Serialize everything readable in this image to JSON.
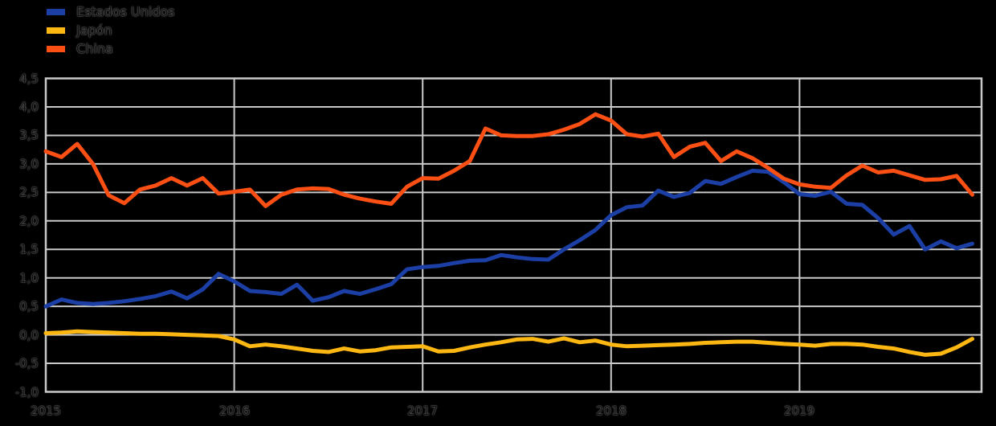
{
  "legend": {
    "items": [
      {
        "label": "Estados Unidos",
        "color": "#1b3fa5"
      },
      {
        "label": "Japón",
        "color": "#fdb712"
      },
      {
        "label": "China",
        "color": "#fb4f14"
      }
    ]
  },
  "axes": {
    "y_tick_labels": [
      "4,5",
      "4,0",
      "3,5",
      "3,0",
      "2,5",
      "2,0",
      "1,5",
      "1,0",
      "0,5",
      "0,0",
      "-0,5",
      "-1,0"
    ],
    "x_tick_labels": [
      "2015",
      "2016",
      "2017",
      "2018",
      "2019"
    ]
  },
  "chart_data": {
    "type": "line",
    "title": "",
    "xlabel": "",
    "ylabel": "",
    "grid": true,
    "legend_position": "top-left",
    "background_color": "#000000",
    "gridline_color": "#c9c9c9",
    "ylim": [
      -1.0,
      4.5
    ],
    "y_ticks": [
      4.5,
      4.0,
      3.5,
      3.0,
      2.5,
      2.0,
      1.5,
      1.0,
      0.5,
      0.0,
      -0.5,
      -1.0
    ],
    "x_ticks_years": [
      "2015",
      "2016",
      "2017",
      "2018",
      "2019"
    ],
    "x": [
      "2015-01",
      "2015-02",
      "2015-03",
      "2015-04",
      "2015-05",
      "2015-06",
      "2015-07",
      "2015-08",
      "2015-09",
      "2015-10",
      "2015-11",
      "2015-12",
      "2016-01",
      "2016-02",
      "2016-03",
      "2016-04",
      "2016-05",
      "2016-06",
      "2016-07",
      "2016-08",
      "2016-09",
      "2016-10",
      "2016-11",
      "2016-12",
      "2017-01",
      "2017-02",
      "2017-03",
      "2017-04",
      "2017-05",
      "2017-06",
      "2017-07",
      "2017-08",
      "2017-09",
      "2017-10",
      "2017-11",
      "2017-12",
      "2018-01",
      "2018-02",
      "2018-03",
      "2018-04",
      "2018-05",
      "2018-06",
      "2018-07",
      "2018-08",
      "2018-09",
      "2018-10",
      "2018-11",
      "2018-12",
      "2019-01",
      "2019-02",
      "2019-03",
      "2019-04",
      "2019-05",
      "2019-06",
      "2019-07",
      "2019-08",
      "2019-09",
      "2019-10",
      "2019-11",
      "2019-12"
    ],
    "series": [
      {
        "name": "Estados Unidos",
        "color": "#1b3fa5",
        "values": [
          0.5,
          0.62,
          0.56,
          0.54,
          0.56,
          0.59,
          0.63,
          0.68,
          0.76,
          0.64,
          0.8,
          1.07,
          0.94,
          0.77,
          0.75,
          0.72,
          0.88,
          0.6,
          0.66,
          0.77,
          0.72,
          0.8,
          0.89,
          1.15,
          1.19,
          1.21,
          1.26,
          1.3,
          1.31,
          1.4,
          1.36,
          1.33,
          1.32,
          1.5,
          1.66,
          1.84,
          2.1,
          2.24,
          2.27,
          2.53,
          2.42,
          2.49,
          2.7,
          2.65,
          2.77,
          2.88,
          2.86,
          2.68,
          2.47,
          2.44,
          2.51,
          2.3,
          2.28,
          2.05,
          1.76,
          1.91,
          1.5,
          1.64,
          1.52,
          1.6
        ]
      },
      {
        "name": "Japón",
        "color": "#fdb712",
        "values": [
          0.03,
          0.04,
          0.06,
          0.05,
          0.04,
          0.03,
          0.02,
          0.02,
          0.01,
          0.0,
          -0.01,
          -0.02,
          -0.08,
          -0.2,
          -0.17,
          -0.2,
          -0.24,
          -0.28,
          -0.3,
          -0.24,
          -0.29,
          -0.27,
          -0.22,
          -0.21,
          -0.2,
          -0.29,
          -0.28,
          -0.22,
          -0.17,
          -0.13,
          -0.08,
          -0.07,
          -0.12,
          -0.06,
          -0.13,
          -0.1,
          -0.17,
          -0.2,
          -0.19,
          -0.18,
          -0.17,
          -0.16,
          -0.14,
          -0.13,
          -0.12,
          -0.12,
          -0.14,
          -0.16,
          -0.17,
          -0.19,
          -0.16,
          -0.16,
          -0.17,
          -0.21,
          -0.24,
          -0.3,
          -0.35,
          -0.33,
          -0.22,
          -0.07
        ]
      },
      {
        "name": "China",
        "color": "#fb4f14",
        "values": [
          3.22,
          3.12,
          3.35,
          3.0,
          2.45,
          2.31,
          2.55,
          2.62,
          2.75,
          2.62,
          2.75,
          2.48,
          2.51,
          2.55,
          2.26,
          2.46,
          2.55,
          2.57,
          2.56,
          2.46,
          2.39,
          2.34,
          2.3,
          2.6,
          2.75,
          2.74,
          2.88,
          3.05,
          3.62,
          3.5,
          3.49,
          3.49,
          3.52,
          3.6,
          3.7,
          3.87,
          3.76,
          3.52,
          3.48,
          3.53,
          3.12,
          3.3,
          3.37,
          3.05,
          3.22,
          3.1,
          2.93,
          2.74,
          2.64,
          2.6,
          2.58,
          2.8,
          2.97,
          2.85,
          2.88,
          2.8,
          2.72,
          2.73,
          2.79,
          2.46
        ]
      }
    ]
  }
}
